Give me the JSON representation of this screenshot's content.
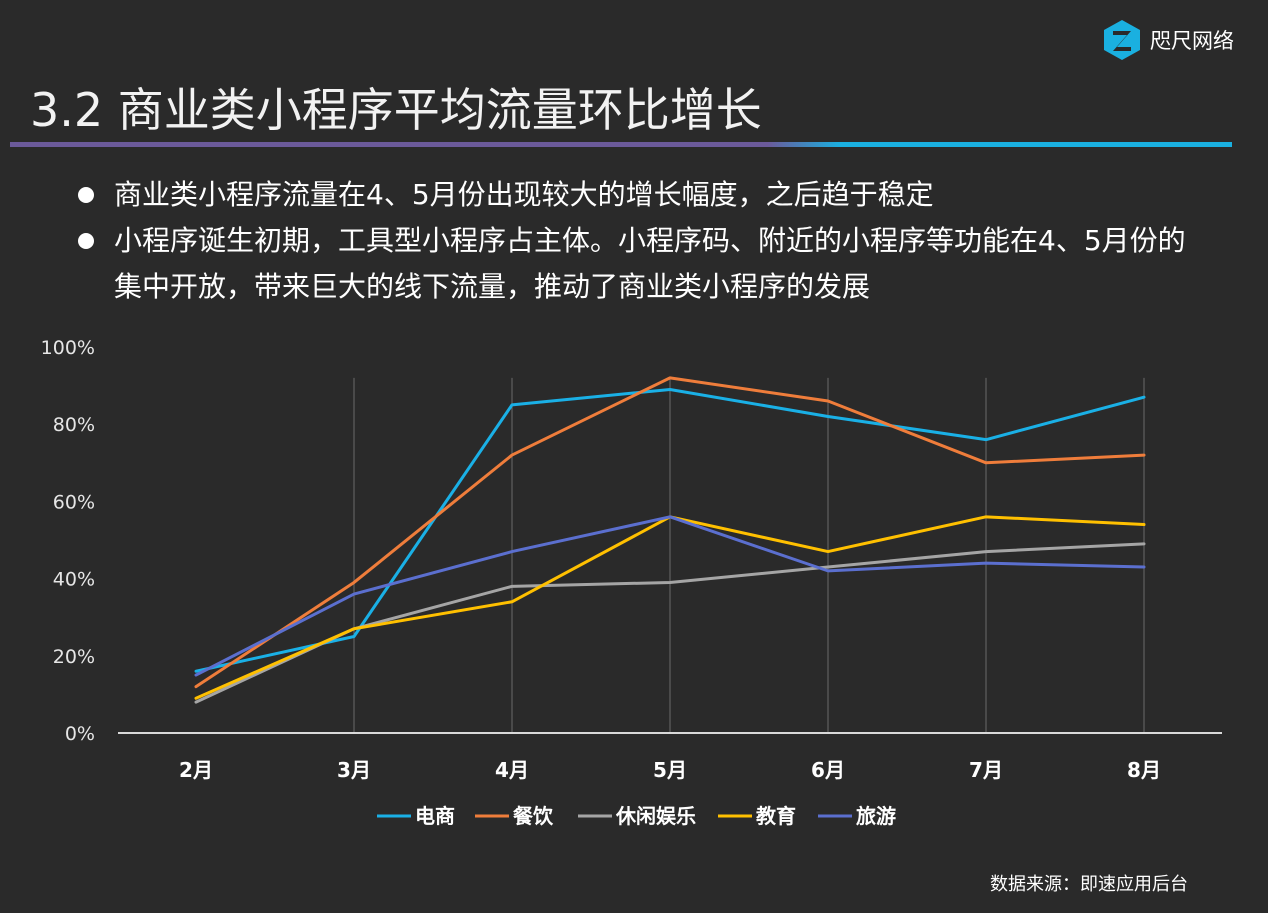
{
  "brand": {
    "name": "咫尺网络",
    "icon": "z-hexagon-logo-icon",
    "color": "#1ab0e0"
  },
  "page_title": "3.2 商业类小程序平均流量环比增长",
  "bullets": [
    "商业类小程序流量在4、5月份出现较大的增长幅度，之后趋于稳定",
    "小程序诞生初期，工具型小程序占主体。小程序码、附近的小程序等功能在4、5月份的集中开放，带来巨大的线下流量，推动了商业类小程序的发展"
  ],
  "source": "数据来源：即速应用后台",
  "chart_data": {
    "type": "line",
    "categories": [
      "2月",
      "3月",
      "4月",
      "5月",
      "6月",
      "7月",
      "8月"
    ],
    "y_ticks": [
      "0%",
      "20%",
      "40%",
      "60%",
      "80%",
      "100%"
    ],
    "ylim": [
      0,
      100
    ],
    "grid": "vertical",
    "legend_position": "bottom",
    "series": [
      {
        "name": "电商",
        "color": "#1ab0e6",
        "values": [
          16,
          25,
          85,
          89,
          82,
          76,
          87
        ]
      },
      {
        "name": "餐饮",
        "color": "#ef7d3b",
        "values": [
          12,
          39,
          72,
          92,
          86,
          70,
          72
        ]
      },
      {
        "name": "休闲娱乐",
        "color": "#a5a5a5",
        "values": [
          8,
          27,
          38,
          39,
          43,
          47,
          49
        ]
      },
      {
        "name": "教育",
        "color": "#ffc000",
        "values": [
          9,
          27,
          34,
          56,
          47,
          56,
          54
        ]
      },
      {
        "name": "旅游",
        "color": "#5b6fcf",
        "values": [
          15,
          36,
          47,
          56,
          42,
          44,
          43
        ]
      }
    ]
  }
}
